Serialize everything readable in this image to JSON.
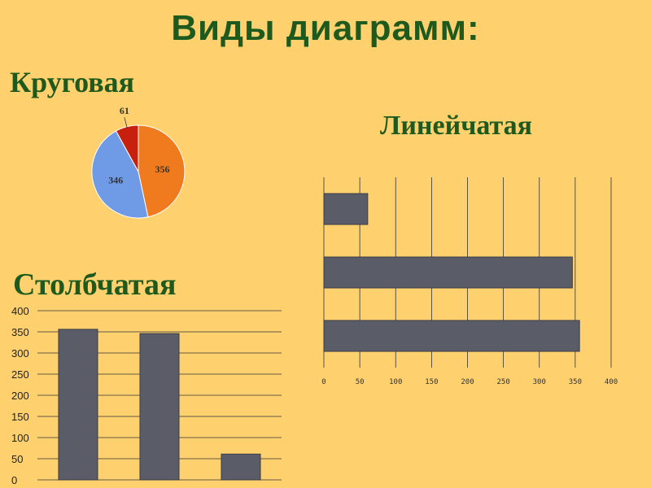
{
  "title": "Виды диаграмм:",
  "labels": {
    "pie": "Круговая",
    "hbar": "Линейчатая",
    "column": "Столбчатая"
  },
  "colors": {
    "background": "#FFD06E",
    "heading": "#1E5A1E",
    "bar": "#5A5D68",
    "pie_orange": "#F07A1E",
    "pie_blue": "#6E9AE6",
    "pie_red": "#C8200E"
  },
  "chart_data": [
    {
      "type": "pie",
      "values": [
        356,
        346,
        61
      ],
      "data_labels": [
        "356",
        "346",
        "61"
      ]
    },
    {
      "type": "bar",
      "orientation": "horizontal",
      "values": [
        356,
        346,
        61
      ],
      "xlim": [
        0,
        400
      ],
      "xticks": [
        "0",
        "50",
        "100",
        "150",
        "200",
        "250",
        "300",
        "350",
        "400"
      ],
      "grid": true
    },
    {
      "type": "bar",
      "orientation": "vertical",
      "values": [
        356,
        346,
        61
      ],
      "ylim": [
        0,
        400
      ],
      "yticks": [
        "0",
        "50",
        "100",
        "150",
        "200",
        "250",
        "300",
        "350",
        "400"
      ],
      "grid": true
    }
  ]
}
